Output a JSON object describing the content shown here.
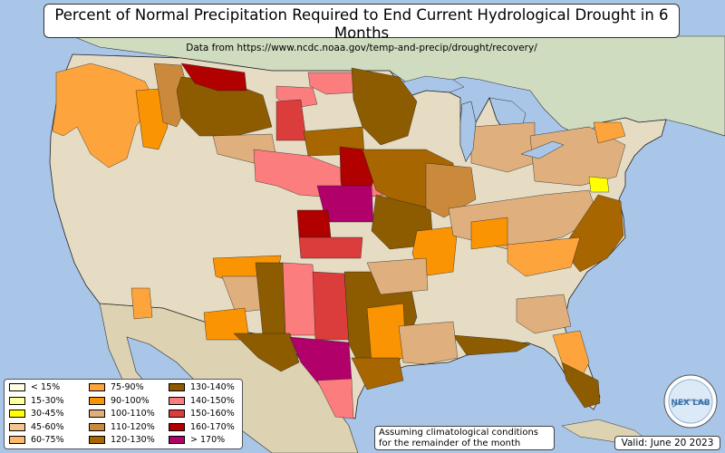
{
  "title": "Percent of Normal Precipitation Required to End Current Hydrological Drought in 6 Months",
  "subtitle": "Data from https://www.ncdc.noaa.gov/temp-and-precip/drought/recovery/",
  "note_line1": "Assuming climatological conditions",
  "note_line2": "for the remainder of the month",
  "valid": "Valid: June 20 2023",
  "logo_text": "NEX LAB",
  "colors": {
    "ocean": "#a9c6e8",
    "land": "#e6dcc4",
    "canada": "#cfdcc0",
    "mexico": "#ddd2b2"
  },
  "legend": [
    {
      "label": "< 15%",
      "color": "#ffffe6"
    },
    {
      "label": "15-30%",
      "color": "#ffff99"
    },
    {
      "label": "30-45%",
      "color": "#ffff00"
    },
    {
      "label": "45-60%",
      "color": "#f5c78e"
    },
    {
      "label": "60-75%",
      "color": "#fdb86a"
    },
    {
      "label": "75-90%",
      "color": "#fea43d"
    },
    {
      "label": "90-100%",
      "color": "#fb9402"
    },
    {
      "label": "100-110%",
      "color": "#dfaf7d"
    },
    {
      "label": "110-120%",
      "color": "#cb8a3b"
    },
    {
      "label": "120-130%",
      "color": "#a76600"
    },
    {
      "label": "130-140%",
      "color": "#8d5c00"
    },
    {
      "label": "140-150%",
      "color": "#fc7d7d"
    },
    {
      "label": "150-160%",
      "color": "#db3c3c"
    },
    {
      "label": "160-170%",
      "color": "#b00000"
    },
    {
      "label": "> 170%",
      "color": "#b2006a"
    }
  ]
}
